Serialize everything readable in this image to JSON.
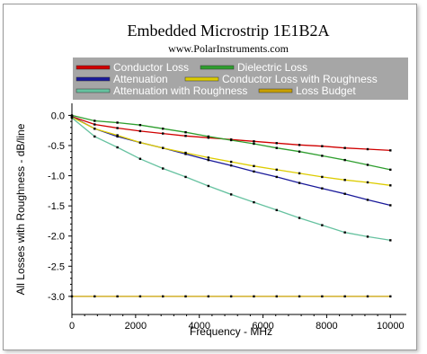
{
  "chart_data": {
    "type": "line",
    "title": "Embedded Microstrip 1E1B2A",
    "subtitle": "www.PolarInstruments.com",
    "xlabel": "Frequency - MHz",
    "ylabel": "All Losses with Roughness - dB/line",
    "xlim": [
      0,
      10500
    ],
    "ylim": [
      -3.3,
      0.2
    ],
    "grid": false,
    "legend_position": "top",
    "x_ticks": [
      0,
      2000,
      4000,
      6000,
      8000,
      10000
    ],
    "y_ticks": [
      0.0,
      -0.5,
      -1.0,
      -1.5,
      -2.0,
      -2.5,
      -3.0
    ],
    "x_tick_labels": [
      "0",
      "2000",
      "4000",
      "6000",
      "8000",
      "10000"
    ],
    "y_tick_labels": [
      "0.0",
      "-0.5",
      "-1.0",
      "-1.5",
      "-2.0",
      "-2.5",
      "-3.0"
    ],
    "x": [
      0,
      714,
      1429,
      2143,
      2857,
      3571,
      4286,
      5000,
      5714,
      6429,
      7143,
      7857,
      8571,
      9286,
      10000
    ],
    "series": [
      {
        "name": "Conductor Loss",
        "color": "#d00000",
        "values": [
          -0.02,
          -0.15,
          -0.21,
          -0.26,
          -0.3,
          -0.34,
          -0.37,
          -0.4,
          -0.43,
          -0.46,
          -0.49,
          -0.51,
          -0.54,
          -0.56,
          -0.58
        ]
      },
      {
        "name": "Dielectric Loss",
        "color": "#2e9e2e",
        "values": [
          0.0,
          -0.09,
          -0.12,
          -0.16,
          -0.22,
          -0.28,
          -0.35,
          -0.41,
          -0.47,
          -0.54,
          -0.6,
          -0.67,
          -0.74,
          -0.82,
          -0.9
        ]
      },
      {
        "name": "Attenuation",
        "color": "#1a1a9a",
        "values": [
          -0.02,
          -0.22,
          -0.35,
          -0.45,
          -0.54,
          -0.64,
          -0.74,
          -0.83,
          -0.93,
          -1.02,
          -1.12,
          -1.21,
          -1.3,
          -1.4,
          -1.49
        ]
      },
      {
        "name": "Conductor Loss with Roughness",
        "color": "#ddcc00",
        "values": [
          -0.03,
          -0.22,
          -0.33,
          -0.45,
          -0.54,
          -0.62,
          -0.7,
          -0.77,
          -0.84,
          -0.9,
          -0.96,
          -1.02,
          -1.07,
          -1.11,
          -1.16
        ]
      },
      {
        "name": "Attenuation with Roughness",
        "color": "#66c2a0",
        "values": [
          -0.04,
          -0.35,
          -0.53,
          -0.72,
          -0.88,
          -1.02,
          -1.17,
          -1.31,
          -1.44,
          -1.57,
          -1.7,
          -1.82,
          -1.94,
          -2.01,
          -2.07
        ]
      },
      {
        "name": "Loss Budget",
        "color": "#c8a000",
        "values": [
          -3.0,
          -3.0,
          -3.0,
          -3.0,
          -3.0,
          -3.0,
          -3.0,
          -3.0,
          -3.0,
          -3.0,
          -3.0,
          -3.0,
          -3.0,
          -3.0,
          -3.0
        ]
      }
    ]
  },
  "colors": {
    "legend_bg": "#a6a6a6",
    "plot_bg": "#ffffff",
    "marker": "#000000"
  }
}
